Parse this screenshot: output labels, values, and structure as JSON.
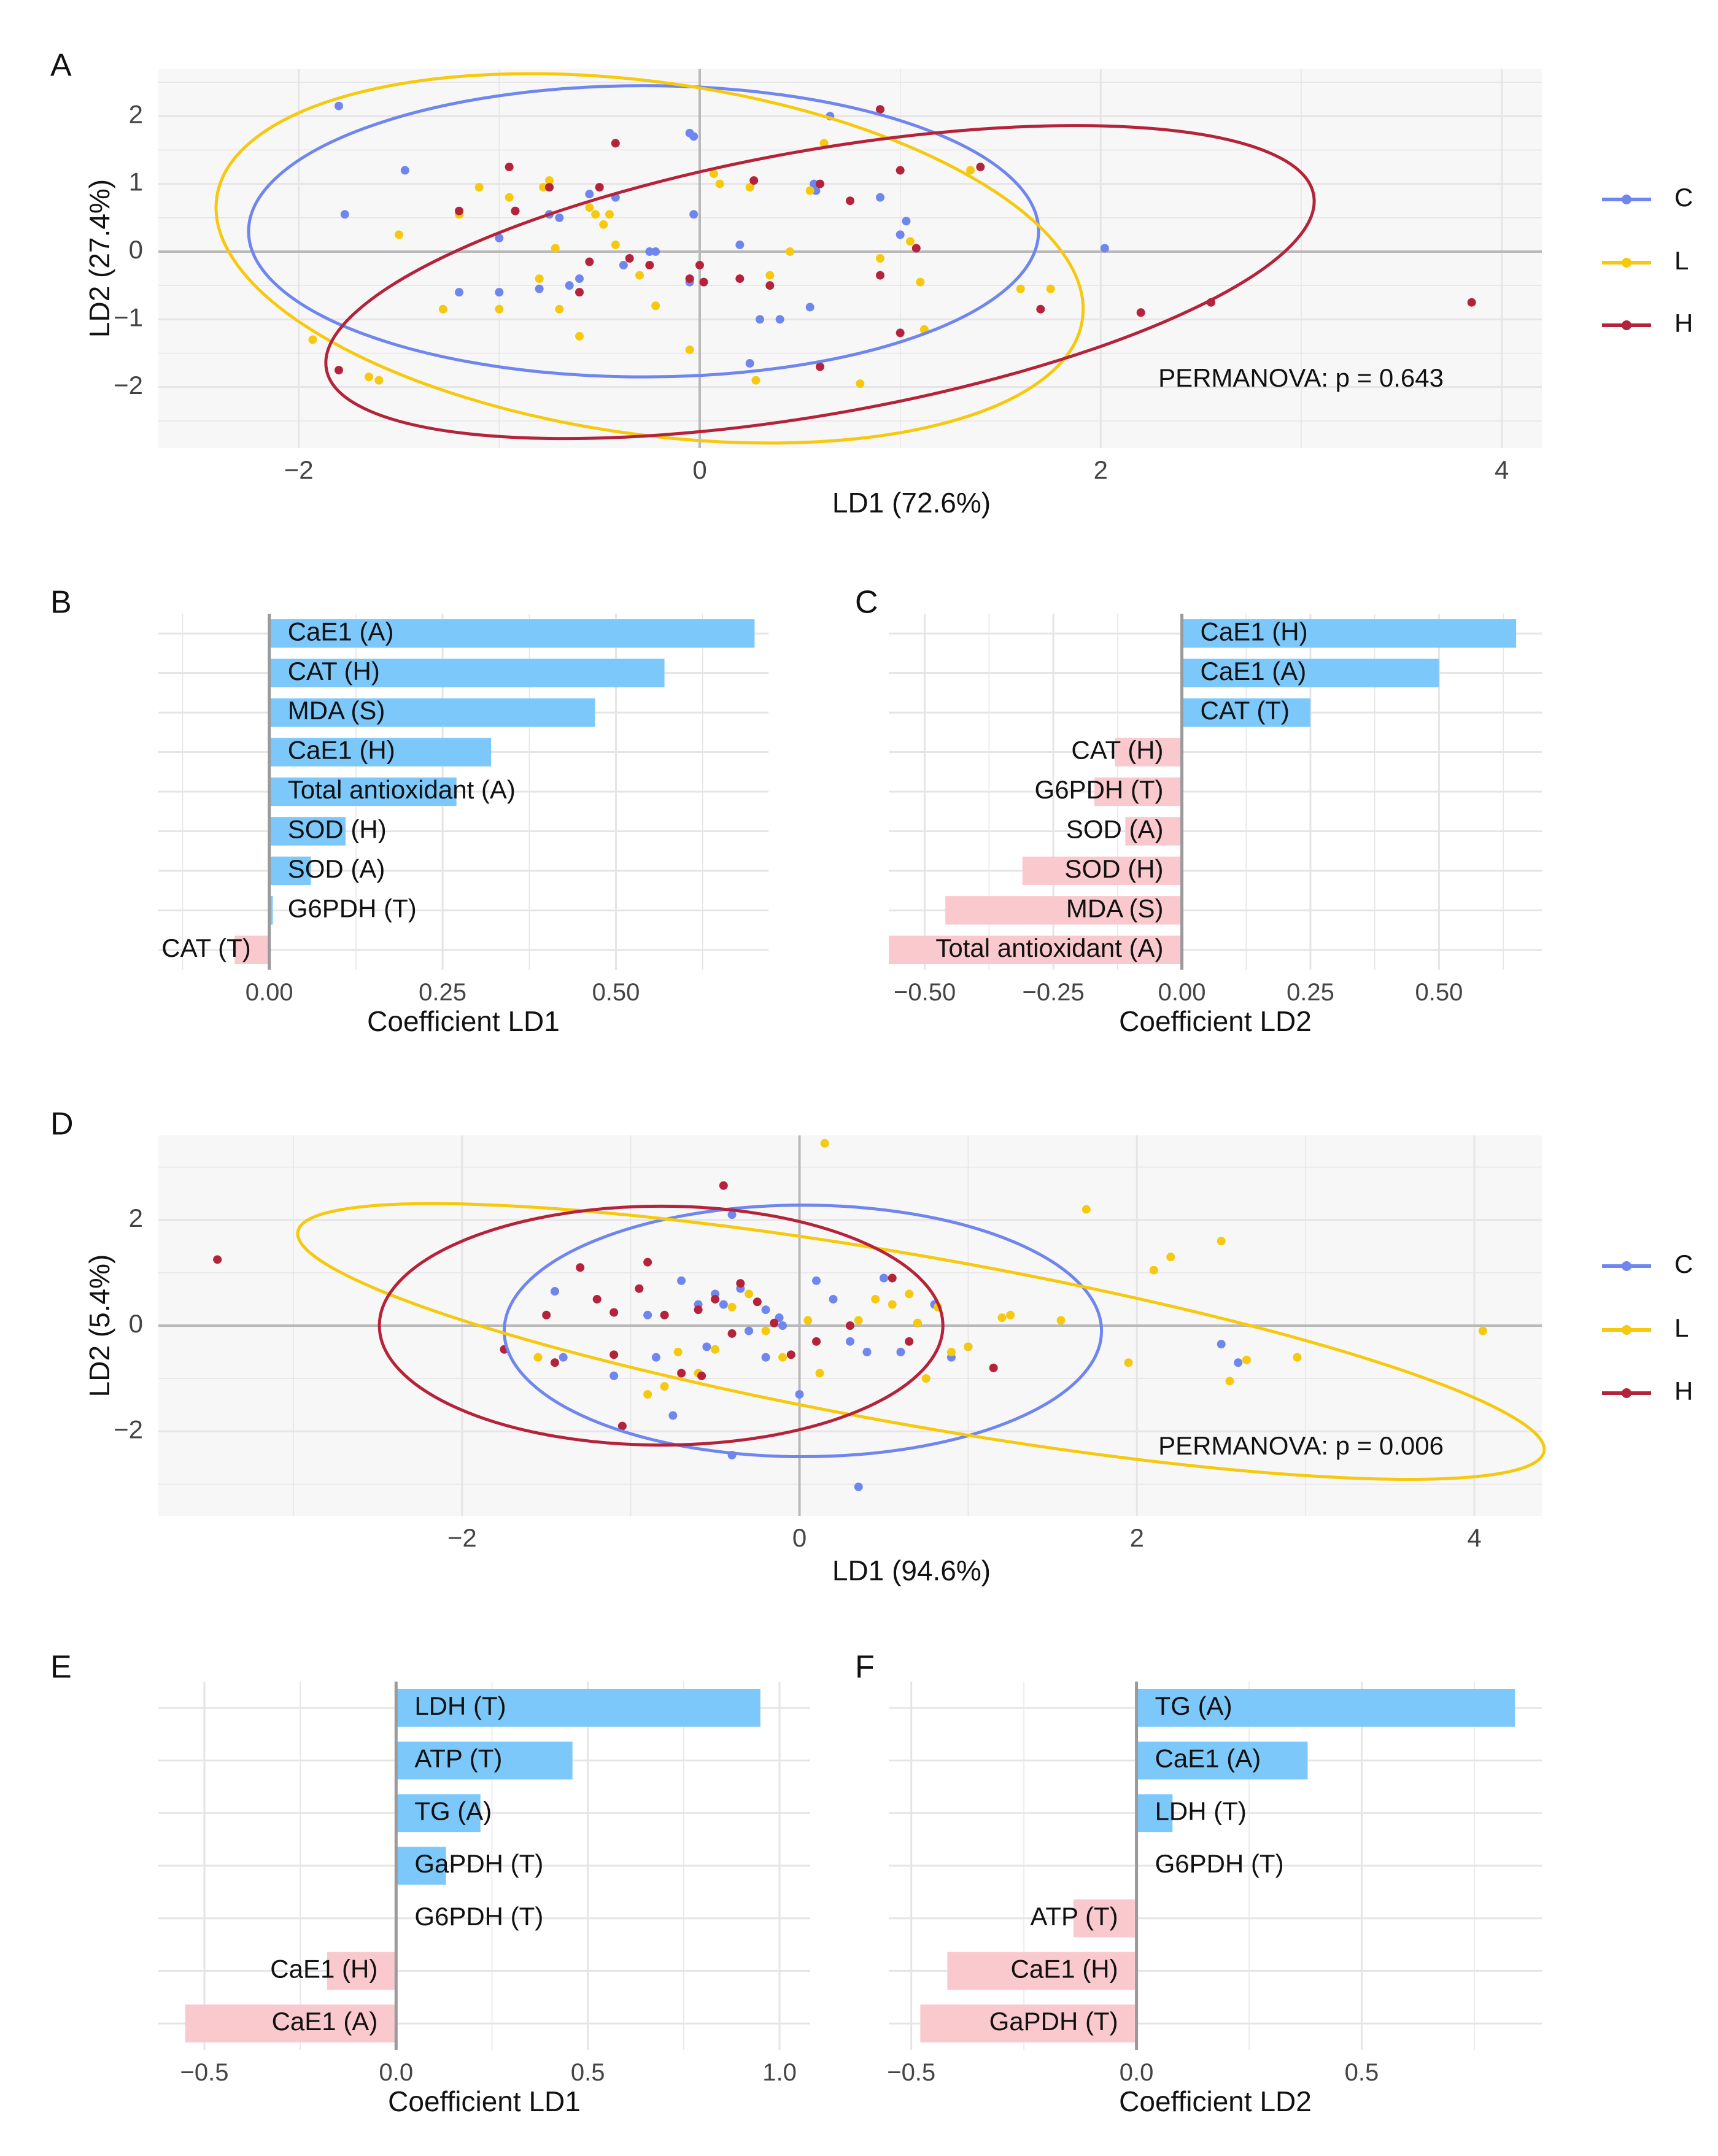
{
  "colors": {
    "C": "#6F86EE",
    "L": "#F6C90E",
    "H": "#B5233A",
    "pos_bar": "#7DC8FA",
    "neg_bar": "#F9C9CD",
    "panel_bg": "#F8F7F8",
    "grid": "#E6E4E6",
    "zero": "#B9B9B9"
  },
  "chart_data": [
    {
      "panel": "A",
      "type": "scatter",
      "xlabel": "LD1 (72.6%)",
      "ylabel": "LD2 (27.4%)",
      "xlim": [
        -2.7,
        4.2
      ],
      "ylim": [
        -2.9,
        2.7
      ],
      "xticks": [
        -2,
        0,
        2,
        4
      ],
      "yticks": [
        -2,
        -1,
        0,
        1,
        2
      ],
      "annotation": "PERMANOVA: p = 0.643",
      "legend": [
        "C",
        "L",
        "H"
      ],
      "legend_position": "right",
      "ellipses": {
        "C": {
          "cx": -0.28,
          "cy": 0.3,
          "rx": 1.97,
          "ry": 2.15,
          "angle": 0
        },
        "L": {
          "cx": -0.25,
          "cy": -0.1,
          "rx": 2.18,
          "ry": 2.6,
          "angle": 8
        },
        "H": {
          "cx": 0.6,
          "cy": -0.45,
          "rx": 2.5,
          "ry": 1.95,
          "angle": -10
        }
      },
      "series": [
        {
          "name": "C",
          "x": [
            -1.8,
            -1.47,
            -1.77,
            -1.2,
            -1.0,
            -1.0,
            -0.75,
            -0.8,
            -0.92,
            -0.65,
            -0.7,
            -0.55,
            -0.38,
            -0.42,
            -0.25,
            -0.22,
            -0.05,
            -0.03,
            -0.03,
            -0.05,
            0.25,
            0.4,
            0.55,
            0.57,
            0.58,
            0.65,
            0.9,
            1.03,
            1.0,
            2.02,
            0.2,
            0.3,
            -0.6
          ],
          "y": [
            2.15,
            1.2,
            0.55,
            -0.6,
            -0.6,
            0.2,
            0.55,
            -0.55,
            0.6,
            -0.5,
            0.5,
            0.85,
            -0.2,
            0.8,
            0.0,
            0.0,
            1.75,
            1.7,
            0.55,
            -0.45,
            -1.65,
            -1.0,
            -0.82,
            1.0,
            0.9,
            2.0,
            0.8,
            0.45,
            0.25,
            0.05,
            0.1,
            -1.0,
            -0.4
          ]
        },
        {
          "name": "L",
          "x": [
            -1.93,
            -1.65,
            -1.6,
            -1.5,
            -1.28,
            -1.2,
            -1.1,
            -1.0,
            -0.95,
            -0.8,
            -0.78,
            -0.75,
            -0.7,
            -0.6,
            -0.55,
            -0.52,
            -0.48,
            -0.45,
            -0.42,
            -0.3,
            -0.22,
            -0.05,
            0.07,
            0.1,
            0.25,
            0.35,
            0.45,
            0.55,
            0.62,
            0.8,
            0.9,
            1.05,
            1.1,
            1.12,
            1.35,
            1.6,
            1.75,
            0.28,
            -0.72
          ],
          "y": [
            -1.3,
            -1.85,
            -1.9,
            0.25,
            -0.85,
            0.55,
            0.95,
            -0.85,
            0.8,
            -0.4,
            0.95,
            1.05,
            -0.85,
            -1.25,
            0.65,
            0.55,
            0.4,
            0.55,
            0.1,
            -0.35,
            -0.8,
            -1.45,
            1.15,
            1.0,
            0.95,
            -0.35,
            0.0,
            0.9,
            1.6,
            -1.95,
            -0.1,
            0.15,
            -0.45,
            -1.15,
            1.2,
            -0.55,
            -0.55,
            -1.9,
            0.05
          ]
        },
        {
          "name": "H",
          "x": [
            -1.8,
            -1.2,
            -0.95,
            -0.92,
            -0.75,
            -0.6,
            -0.55,
            -0.5,
            -0.42,
            -0.35,
            -0.25,
            -0.05,
            0.0,
            0.02,
            0.27,
            0.35,
            0.6,
            0.75,
            0.9,
            0.9,
            1.0,
            1.08,
            1.4,
            1.7,
            2.2,
            2.55,
            3.85,
            1.0,
            0.6,
            0.2
          ],
          "y": [
            -1.75,
            0.6,
            1.25,
            0.6,
            0.95,
            -0.6,
            -0.15,
            0.95,
            1.6,
            -0.1,
            -0.2,
            -0.4,
            -0.2,
            -0.45,
            1.05,
            -0.5,
            1.0,
            0.75,
            2.1,
            -0.35,
            1.2,
            0.05,
            1.25,
            -0.85,
            -0.9,
            -0.75,
            -0.75,
            -1.2,
            -1.7,
            -0.4
          ]
        }
      ]
    },
    {
      "panel": "B",
      "type": "bar",
      "orientation": "horizontal",
      "xlabel": "Coefficient LD1",
      "xlim": [
        -0.16,
        0.72
      ],
      "xticks": [
        0.0,
        0.25,
        0.5
      ],
      "tick_labels": [
        "0.00",
        "0.25",
        "0.50"
      ],
      "categories": [
        "CaE1 (A)",
        "CAT (H)",
        "MDA (S)",
        "CaE1 (H)",
        "Total antioxidant (A)",
        "SOD (H)",
        "SOD (A)",
        "G6PDH (T)",
        "CAT (T)"
      ],
      "values": [
        0.7,
        0.57,
        0.47,
        0.32,
        0.27,
        0.11,
        0.06,
        0.005,
        -0.05
      ]
    },
    {
      "panel": "C",
      "type": "bar",
      "orientation": "horizontal",
      "xlabel": "Coefficient LD2",
      "xlim": [
        -0.57,
        0.7
      ],
      "xticks": [
        -0.5,
        -0.25,
        0.0,
        0.25,
        0.5
      ],
      "tick_labels": [
        "−0.50",
        "−0.25",
        "0.00",
        "0.25",
        "0.50"
      ],
      "categories": [
        "CaE1 (H)",
        "CaE1 (A)",
        "CAT (T)",
        "CAT (H)",
        "G6PDH (T)",
        "SOD (A)",
        "SOD (H)",
        "MDA (S)",
        "Total antioxidant (A)"
      ],
      "values": [
        0.65,
        0.5,
        0.25,
        -0.13,
        -0.17,
        -0.11,
        -0.31,
        -0.46,
        -0.57
      ]
    },
    {
      "panel": "D",
      "type": "scatter",
      "xlabel": "LD1 (94.6%)",
      "ylabel": "LD2 (5.4%)",
      "xlim": [
        -3.8,
        4.4
      ],
      "ylim": [
        -3.6,
        3.6
      ],
      "xticks": [
        -2,
        0,
        2,
        4
      ],
      "yticks": [
        -2,
        0,
        2
      ],
      "annotation": "PERMANOVA: p = 0.006",
      "legend": [
        "C",
        "L",
        "H"
      ],
      "legend_position": "right",
      "ellipses": {
        "C": {
          "cx": 0.02,
          "cy": -0.1,
          "rx": 1.77,
          "ry": 2.38,
          "angle": 0
        },
        "L": {
          "cx": 0.72,
          "cy": -0.3,
          "rx": 3.75,
          "ry": 1.6,
          "angle": 10
        },
        "H": {
          "cx": -0.82,
          "cy": -0.0,
          "rx": 1.67,
          "ry": 2.26,
          "angle": 0
        }
      },
      "series": [
        {
          "name": "C",
          "x": [
            -1.45,
            -1.4,
            -1.1,
            -0.9,
            -0.85,
            -0.75,
            -0.7,
            -0.6,
            -0.55,
            -0.5,
            -0.45,
            -0.4,
            -0.35,
            -0.3,
            -0.2,
            -0.1,
            0.0,
            0.1,
            0.2,
            0.3,
            0.4,
            0.5,
            0.6,
            0.7,
            0.8,
            0.9,
            1.0,
            2.5,
            2.6,
            -0.2,
            -0.4,
            0.35,
            -0.12
          ],
          "y": [
            0.65,
            -0.6,
            -0.95,
            0.2,
            -0.6,
            -1.7,
            0.85,
            0.4,
            -0.4,
            0.6,
            0.4,
            2.1,
            0.7,
            -0.1,
            0.3,
            0.0,
            -1.3,
            0.85,
            0.5,
            -0.3,
            -0.5,
            0.9,
            -0.5,
            0.05,
            0.4,
            -0.6,
            -0.4,
            -0.35,
            -0.7,
            -0.6,
            -2.45,
            -3.05,
            0.15
          ]
        },
        {
          "name": "L",
          "x": [
            -1.55,
            -0.9,
            -0.72,
            -0.6,
            -0.5,
            -0.4,
            -0.3,
            -0.2,
            -0.1,
            0.05,
            0.15,
            0.35,
            0.45,
            0.55,
            0.65,
            0.7,
            0.75,
            0.9,
            1.0,
            1.2,
            1.25,
            1.55,
            1.7,
            1.95,
            2.1,
            2.2,
            2.5,
            2.55,
            2.65,
            2.95,
            4.05,
            0.12,
            -0.8,
            0.82
          ],
          "y": [
            -0.6,
            -1.3,
            -0.5,
            -0.9,
            -0.45,
            0.35,
            0.6,
            -0.1,
            -0.6,
            0.1,
            3.45,
            0.1,
            0.5,
            0.4,
            0.6,
            0.05,
            -1.0,
            -0.5,
            -0.4,
            0.15,
            0.2,
            0.1,
            2.2,
            -0.7,
            1.05,
            1.3,
            1.6,
            -1.05,
            -0.65,
            -0.6,
            -0.1,
            -0.9,
            -1.15,
            0.35
          ]
        },
        {
          "name": "H",
          "x": [
            -3.45,
            -1.75,
            -1.5,
            -1.45,
            -1.3,
            -1.2,
            -1.1,
            -1.05,
            -0.95,
            -0.9,
            -0.8,
            -0.7,
            -0.6,
            -0.5,
            -0.45,
            -0.35,
            -0.25,
            -0.15,
            -0.05,
            0.1,
            0.3,
            0.55,
            0.65,
            1.15,
            -0.58,
            -1.1,
            -0.4
          ],
          "y": [
            1.25,
            -0.45,
            0.2,
            -0.7,
            1.1,
            0.5,
            0.25,
            -1.9,
            0.7,
            1.2,
            0.2,
            -0.9,
            0.3,
            0.5,
            2.65,
            0.8,
            0.45,
            0.05,
            -0.55,
            -0.3,
            0.0,
            0.9,
            -0.3,
            -0.8,
            -0.95,
            -0.55,
            -0.15
          ]
        }
      ]
    },
    {
      "panel": "E",
      "type": "bar",
      "orientation": "horizontal",
      "xlabel": "Coefficient LD1",
      "xlim": [
        -0.62,
        1.08
      ],
      "xticks": [
        -0.5,
        0.0,
        0.5,
        1.0
      ],
      "tick_labels": [
        "−0.5",
        "0.0",
        "0.5",
        "1.0"
      ],
      "categories": [
        "LDH (T)",
        "ATP (T)",
        "TG (A)",
        "GaPDH (T)",
        "G6PDH (T)",
        "CaE1 (H)",
        "CaE1 (A)"
      ],
      "values": [
        0.95,
        0.46,
        0.22,
        0.13,
        0.0,
        -0.18,
        -0.55
      ]
    },
    {
      "panel": "F",
      "type": "bar",
      "orientation": "horizontal",
      "xlabel": "Coefficient LD2",
      "xlim": [
        -0.55,
        0.9
      ],
      "xticks": [
        -0.5,
        0.0,
        0.5
      ],
      "tick_labels": [
        "−0.5",
        "0.0",
        "0.5"
      ],
      "categories": [
        "TG (A)",
        "CaE1 (A)",
        "LDH (T)",
        "G6PDH (T)",
        "ATP (T)",
        "CaE1 (H)",
        "GaPDH (T)"
      ],
      "values": [
        0.84,
        0.38,
        0.08,
        0.0,
        -0.14,
        -0.42,
        -0.48
      ]
    }
  ]
}
